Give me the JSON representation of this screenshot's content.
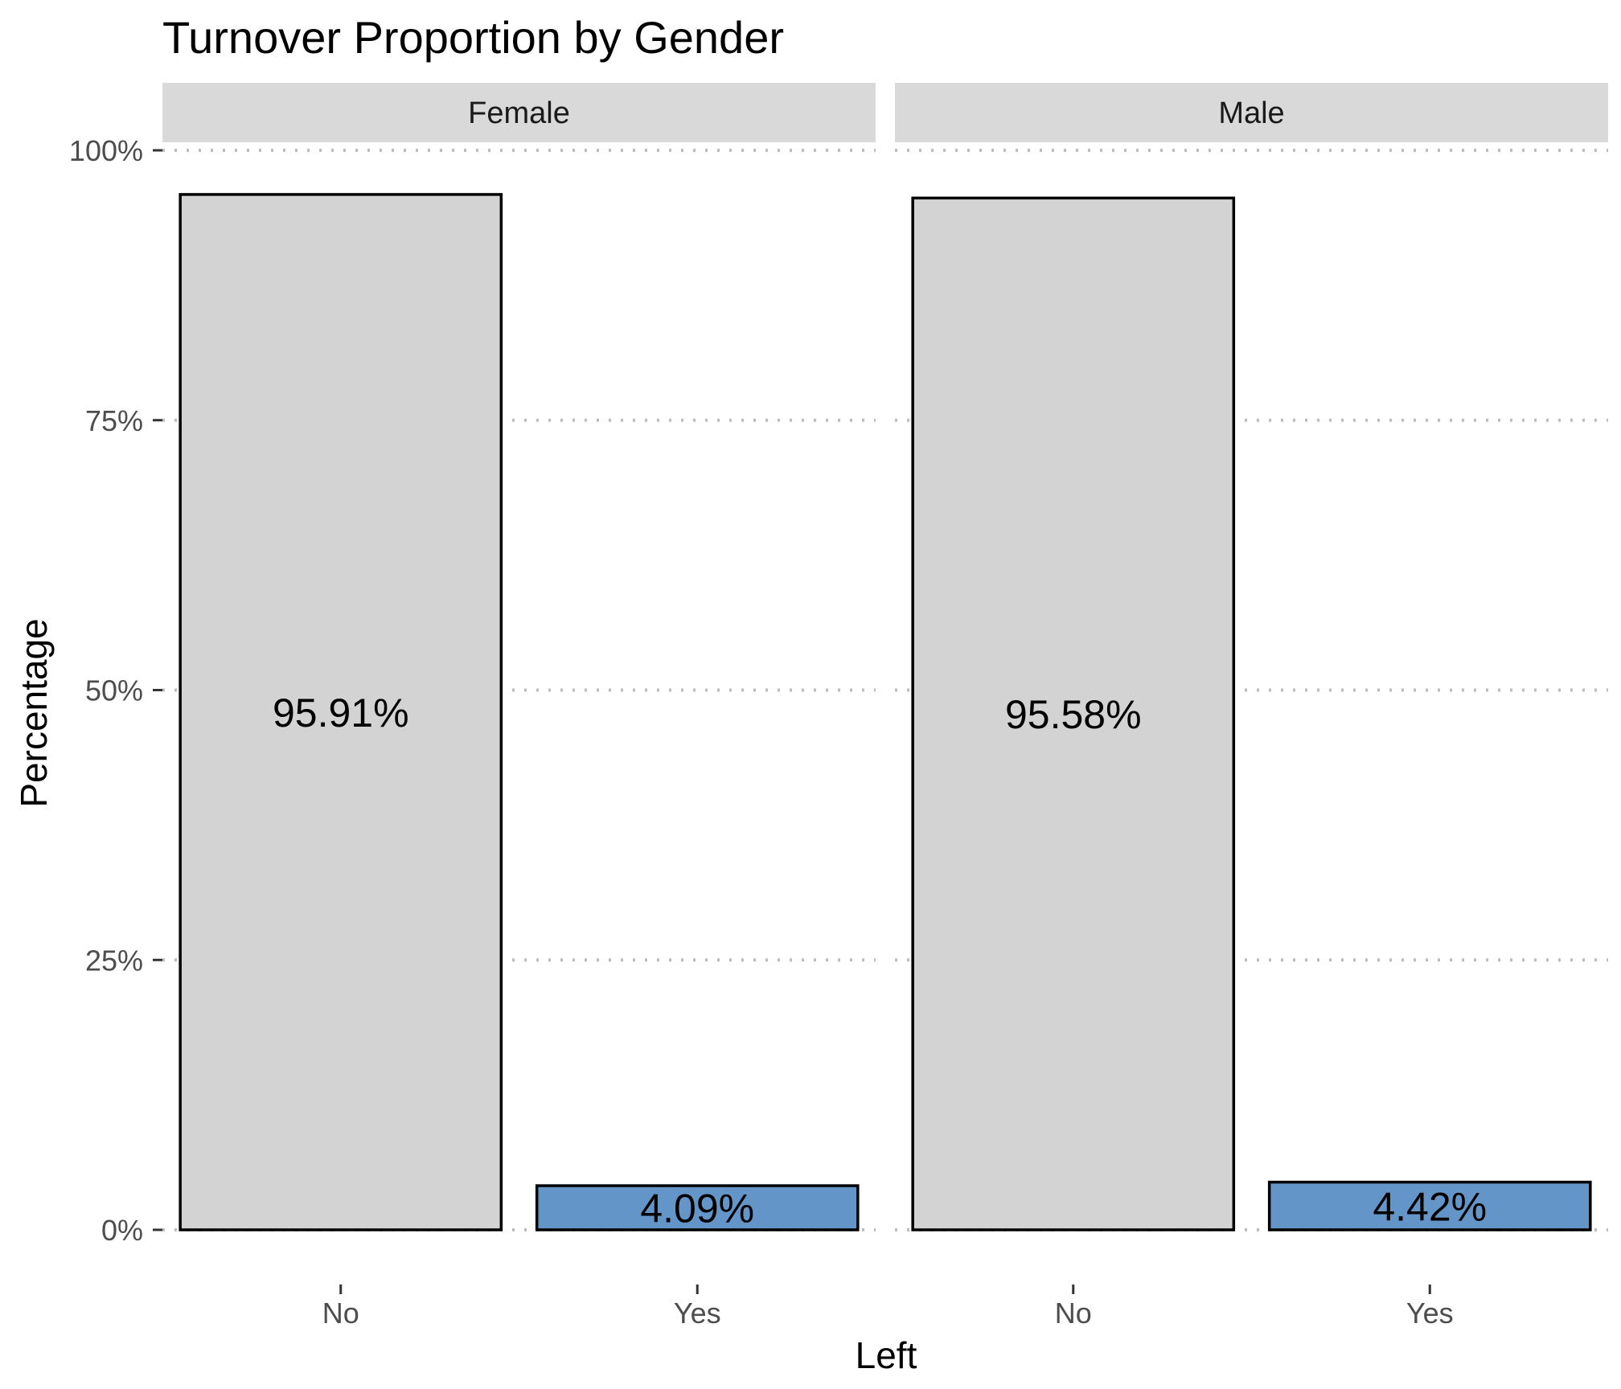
{
  "chart_data": {
    "type": "bar",
    "title": "Turnover Proportion by Gender",
    "xlabel": "Left",
    "ylabel": "Percentage",
    "ylim": [
      0,
      100
    ],
    "y_ticks": [
      0,
      25,
      50,
      75,
      100
    ],
    "y_tick_labels": [
      "0%",
      "25%",
      "50%",
      "75%",
      "100%"
    ],
    "grid": "horizontal dotted",
    "categories": [
      "No",
      "Yes"
    ],
    "bar_colors": {
      "No": "#d3d3d3",
      "Yes": "#6495c8"
    },
    "facets": [
      {
        "label": "Female",
        "bars": [
          {
            "category": "No",
            "value": 95.91,
            "label": "95.91%"
          },
          {
            "category": "Yes",
            "value": 4.09,
            "label": "4.09%"
          }
        ]
      },
      {
        "label": "Male",
        "bars": [
          {
            "category": "No",
            "value": 95.58,
            "label": "95.58%"
          },
          {
            "category": "Yes",
            "value": 4.42,
            "label": "4.42%"
          }
        ]
      }
    ]
  }
}
